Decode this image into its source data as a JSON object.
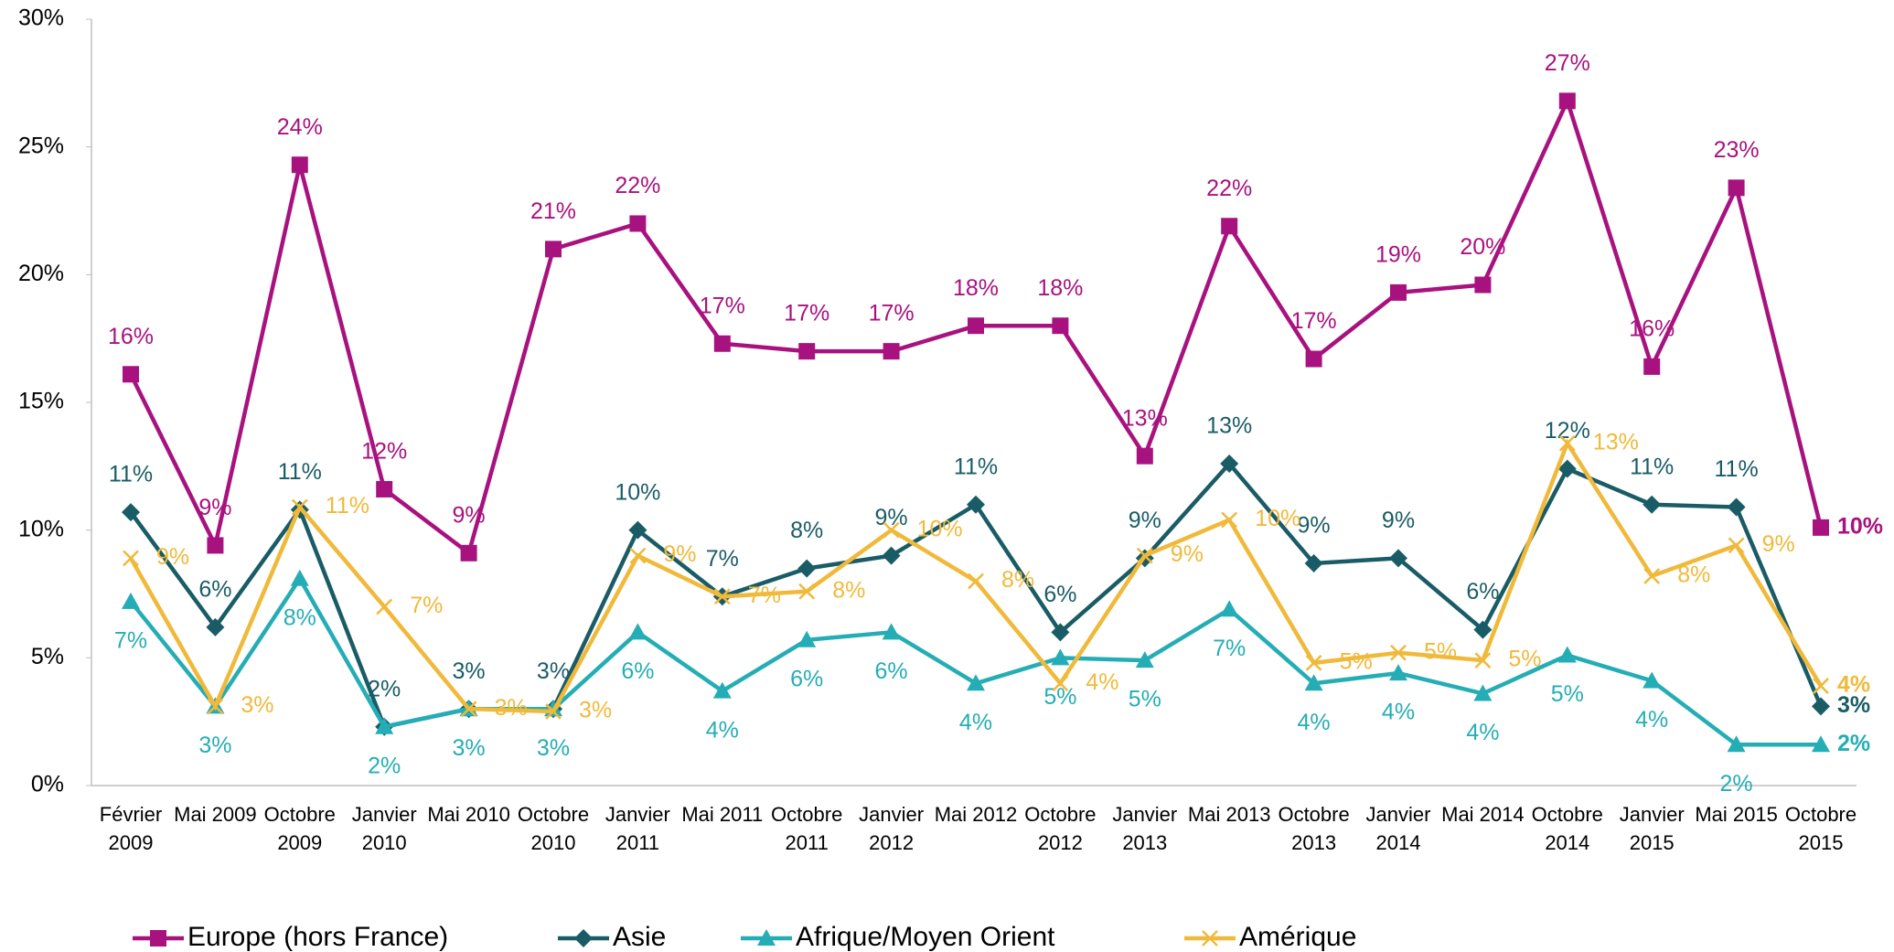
{
  "chart_data": {
    "type": "line",
    "categories": [
      "Février 2009",
      "Mai 2009",
      "Octobre 2009",
      "Janvier 2010",
      "Mai 2010",
      "Octobre 2010",
      "Janvier 2011",
      "Mai 2011",
      "Octobre 2011",
      "Janvier 2012",
      "Mai 2012",
      "Octobre 2012",
      "Janvier 2013",
      "Mai 2013",
      "Octobre 2013",
      "Janvier 2014",
      "Mai 2014",
      "Octobre 2014",
      "Janvier 2015",
      "Mai 2015",
      "Octobre 2015"
    ],
    "ylim": [
      0,
      30
    ],
    "yticks": [
      {
        "value": 0,
        "label": "0%"
      },
      {
        "value": 5,
        "label": "5%"
      },
      {
        "value": 10,
        "label": "10%"
      },
      {
        "value": 15,
        "label": "15%"
      },
      {
        "value": 20,
        "label": "20%"
      },
      {
        "value": 25,
        "label": "25%"
      },
      {
        "value": 30,
        "label": "30%"
      }
    ],
    "legend": "bottom",
    "series": [
      {
        "name": "Europe (hors France)",
        "color": "#a8127f",
        "marker": "square",
        "values": [
          16.1,
          9.4,
          24.3,
          11.6,
          9.1,
          21.0,
          22.0,
          17.3,
          17.0,
          17.0,
          18.0,
          18.0,
          12.9,
          21.9,
          16.7,
          19.3,
          19.6,
          26.8,
          16.4,
          23.4,
          10.1
        ],
        "value_labels": [
          "16%",
          "9%",
          "24%",
          "12%",
          "9%",
          "21%",
          "22%",
          "17%",
          "17%",
          "17%",
          "18%",
          "18%",
          "13%",
          "22%",
          "17%",
          "19%",
          "20%",
          "27%",
          "16%",
          "23%",
          "10%"
        ]
      },
      {
        "name": "Asie",
        "color": "#1a5c66",
        "marker": "diamond",
        "values": [
          10.7,
          6.2,
          10.8,
          2.3,
          3.0,
          3.0,
          10.0,
          7.4,
          8.5,
          9.0,
          11.0,
          6.0,
          8.9,
          12.6,
          8.7,
          8.9,
          6.1,
          12.4,
          11.0,
          10.9,
          3.1
        ],
        "value_labels": [
          "11%",
          "6%",
          "11%",
          "2%",
          "3%",
          "3%",
          "10%",
          "7%",
          "8%",
          "9%",
          "11%",
          "6%",
          "9%",
          "13%",
          "9%",
          "9%",
          "6%",
          "12%",
          "11%",
          "11%",
          "3%"
        ]
      },
      {
        "name": "Afrique/Moyen Orient",
        "color": "#25adb5",
        "marker": "triangle",
        "values": [
          7.2,
          3.1,
          8.1,
          2.3,
          3.0,
          3.0,
          6.0,
          3.7,
          5.7,
          6.0,
          4.0,
          5.0,
          4.9,
          6.9,
          4.0,
          4.4,
          3.6,
          5.1,
          4.1,
          1.6,
          1.6
        ],
        "value_labels": [
          "7%",
          "3%",
          "8%",
          "2%",
          "3%",
          "3%",
          "6%",
          "4%",
          "6%",
          "6%",
          "4%",
          "5%",
          "5%",
          "7%",
          "4%",
          "4%",
          "4%",
          "5%",
          "4%",
          "2%",
          "2%"
        ]
      },
      {
        "name": "Amérique",
        "color": "#f0b93a",
        "marker": "x",
        "values": [
          8.9,
          3.1,
          10.9,
          7.0,
          3.0,
          2.9,
          9.0,
          7.4,
          7.6,
          10.0,
          8.0,
          4.0,
          9.0,
          10.4,
          4.8,
          5.2,
          4.9,
          13.4,
          8.2,
          9.4,
          3.9
        ],
        "value_labels": [
          "9%",
          "3%",
          "11%",
          "7%",
          "3%",
          "3%",
          "9%",
          "7%",
          "8%",
          "10%",
          "8%",
          "4%",
          "9%",
          "10%",
          "5%",
          "5%",
          "5%",
          "13%",
          "8%",
          "9%",
          "4%"
        ]
      }
    ]
  }
}
